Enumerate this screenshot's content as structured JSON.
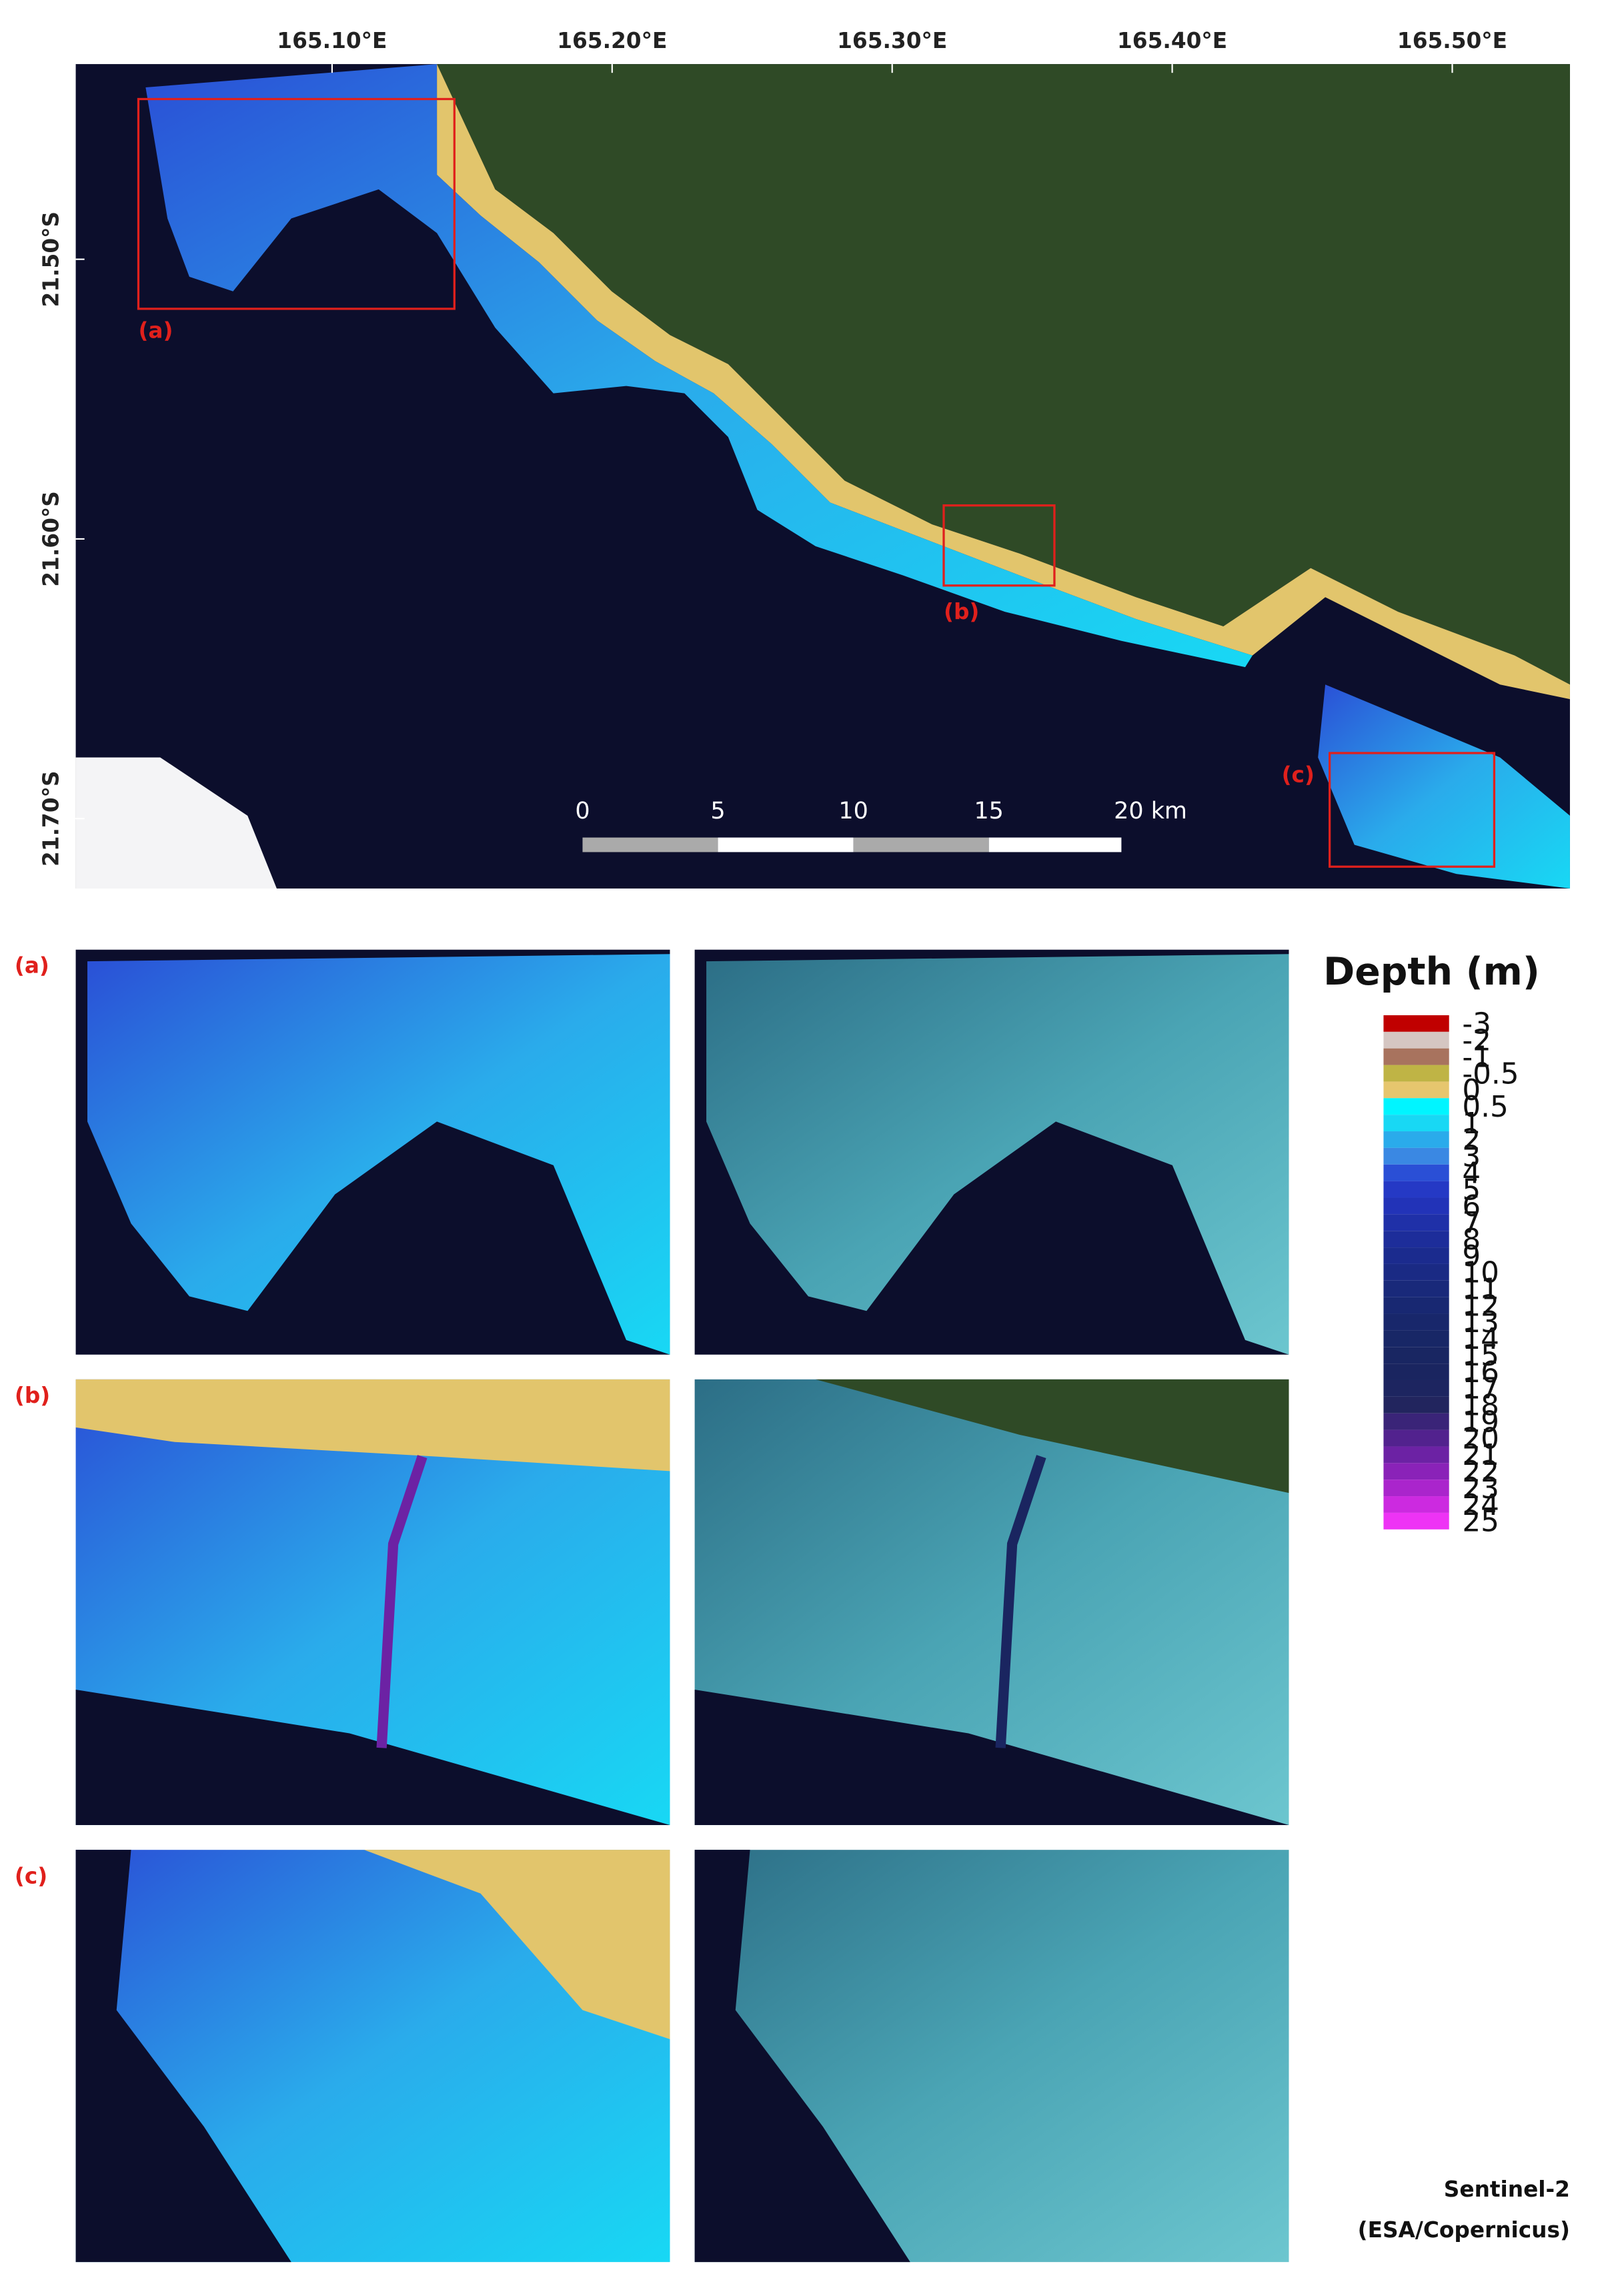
{
  "map": {
    "lon_labels": [
      "165.10°E",
      "165.20°E",
      "165.30°E",
      "165.40°E",
      "165.50°E"
    ],
    "lat_labels": [
      "21.50°S",
      "21.60°S",
      "21.70°S"
    ],
    "inset_labels": [
      "(a)",
      "(b)",
      "(c)"
    ],
    "scale_bar": [
      "0",
      "5",
      "10",
      "15",
      "20 km"
    ]
  },
  "panels": [
    "(a)",
    "(b)",
    "(c)"
  ],
  "legend": {
    "title": "Depth (m)",
    "items": [
      {
        "label": "-3",
        "color": "#c00000"
      },
      {
        "label": "-2",
        "color": "#d5c6c2"
      },
      {
        "label": "-1",
        "color": "#a8735e"
      },
      {
        "label": "-0.5",
        "color": "#bfb445"
      },
      {
        "label": "0",
        "color": "#e6c66e"
      },
      {
        "label": "0.5",
        "color": "#00f5ff"
      },
      {
        "label": "1",
        "color": "#18d8f4"
      },
      {
        "label": "2",
        "color": "#2aabeb"
      },
      {
        "label": "3",
        "color": "#3a88e3"
      },
      {
        "label": "4",
        "color": "#2a4fd6"
      },
      {
        "label": "5",
        "color": "#2539c5"
      },
      {
        "label": "6",
        "color": "#2233b8"
      },
      {
        "label": "7",
        "color": "#1f30a8"
      },
      {
        "label": "8",
        "color": "#1d2d9a"
      },
      {
        "label": "9",
        "color": "#1b2b8e"
      },
      {
        "label": "10",
        "color": "#1a2a84"
      },
      {
        "label": "11",
        "color": "#19297a"
      },
      {
        "label": "12",
        "color": "#182872"
      },
      {
        "label": "13",
        "color": "#18276b"
      },
      {
        "label": "14",
        "color": "#182766"
      },
      {
        "label": "15",
        "color": "#192662"
      },
      {
        "label": "16",
        "color": "#1a2560"
      },
      {
        "label": "17",
        "color": "#1d2560"
      },
      {
        "label": "18",
        "color": "#22255e"
      },
      {
        "label": "19",
        "color": "#3a2478"
      },
      {
        "label": "20",
        "color": "#52228e"
      },
      {
        "label": "21",
        "color": "#6c22a4"
      },
      {
        "label": "22",
        "color": "#8a22b8"
      },
      {
        "label": "23",
        "color": "#aa25cc"
      },
      {
        "label": "24",
        "color": "#cc2ae0"
      },
      {
        "label": "25",
        "color": "#ee33f5"
      }
    ]
  },
  "credit": [
    "Sentinel-2",
    "(ESA/Copernicus)"
  ]
}
